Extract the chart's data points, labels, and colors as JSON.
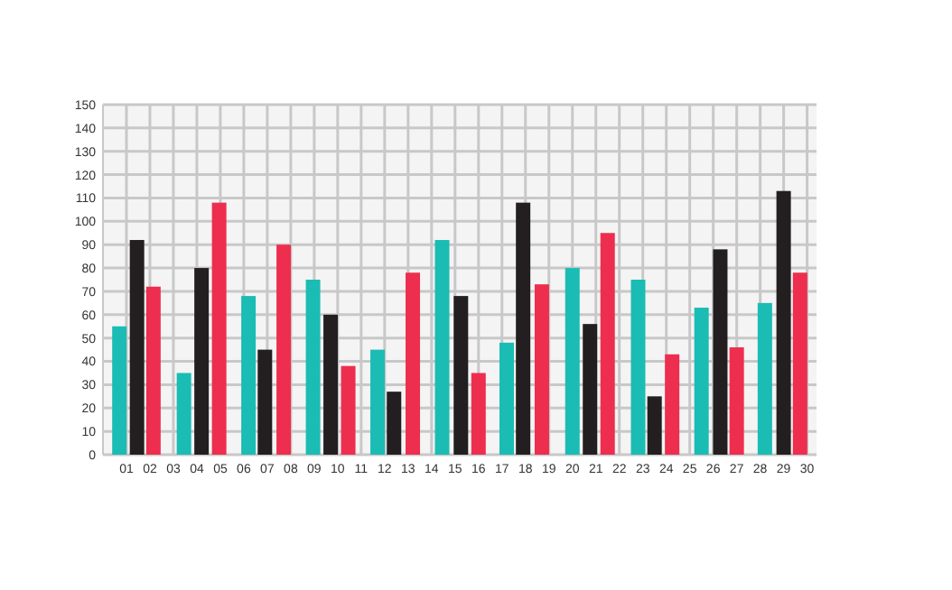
{
  "chart_data": {
    "type": "bar",
    "xlim": [
      0,
      30.4
    ],
    "xticks": [
      {
        "value": 1,
        "label": "01"
      },
      {
        "value": 2,
        "label": "02"
      },
      {
        "value": 3,
        "label": "03"
      },
      {
        "value": 4,
        "label": "04"
      },
      {
        "value": 5,
        "label": "05"
      },
      {
        "value": 6,
        "label": "06"
      },
      {
        "value": 7,
        "label": "07"
      },
      {
        "value": 8,
        "label": "08"
      },
      {
        "value": 9,
        "label": "09"
      },
      {
        "value": 10,
        "label": "10"
      },
      {
        "value": 11,
        "label": "11"
      },
      {
        "value": 12,
        "label": "12"
      },
      {
        "value": 13,
        "label": "13"
      },
      {
        "value": 14,
        "label": "14"
      },
      {
        "value": 15,
        "label": "15"
      },
      {
        "value": 16,
        "label": "16"
      },
      {
        "value": 17,
        "label": "17"
      },
      {
        "value": 18,
        "label": "18"
      },
      {
        "value": 19,
        "label": "19"
      },
      {
        "value": 20,
        "label": "20"
      },
      {
        "value": 21,
        "label": "21"
      },
      {
        "value": 22,
        "label": "22"
      },
      {
        "value": 23,
        "label": "23"
      },
      {
        "value": 24,
        "label": "24"
      },
      {
        "value": 25,
        "label": "25"
      },
      {
        "value": 26,
        "label": "26"
      },
      {
        "value": 27,
        "label": "27"
      },
      {
        "value": 28,
        "label": "28"
      },
      {
        "value": 29,
        "label": "29"
      },
      {
        "value": 30,
        "label": "30"
      }
    ],
    "ylim": [
      0,
      150
    ],
    "yticks": [
      0,
      10,
      20,
      30,
      40,
      50,
      60,
      70,
      80,
      90,
      100,
      110,
      120,
      130,
      140,
      150
    ],
    "grid": true,
    "series": [
      {
        "color": "#1bbcb4",
        "x": [
          0.7,
          3.45,
          6.2,
          8.95,
          11.7,
          14.45,
          17.2,
          20,
          22.8,
          25.5,
          28.2
        ],
        "values": [
          55,
          35,
          68,
          75,
          45,
          92,
          48,
          80,
          75,
          63,
          65
        ]
      },
      {
        "color": "#231f20",
        "x": [
          1.45,
          4.2,
          6.9,
          9.7,
          12.4,
          15.25,
          17.9,
          20.75,
          23.5,
          26.3,
          29
        ],
        "values": [
          92,
          80,
          45,
          60,
          27,
          68,
          108,
          56,
          25,
          88,
          113
        ]
      },
      {
        "color": "#ee2e4e",
        "x": [
          2.15,
          4.95,
          7.7,
          10.45,
          13.2,
          16,
          18.7,
          21.5,
          24.25,
          27,
          29.7
        ],
        "values": [
          72,
          108,
          90,
          38,
          78,
          35,
          73,
          95,
          43,
          46,
          78
        ]
      }
    ]
  }
}
